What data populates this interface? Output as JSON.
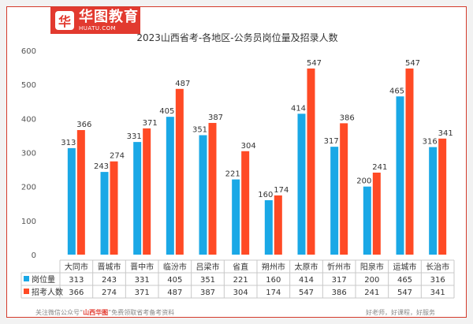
{
  "brand": {
    "mark": "华",
    "name": "华图教育",
    "url": "HUATU.COM"
  },
  "chart_data": {
    "type": "bar",
    "title": "2023山西省考-各地区-公务员岗位量及招录人数",
    "categories": [
      "大同市",
      "晋城市",
      "晋中市",
      "临汾市",
      "吕梁市",
      "省直",
      "朔州市",
      "太原市",
      "忻州市",
      "阳泉市",
      "运城市",
      "长治市"
    ],
    "series": [
      {
        "name": "岗位量",
        "color": "#1aa8e6",
        "values": [
          313,
          243,
          331,
          405,
          351,
          221,
          160,
          414,
          317,
          200,
          465,
          316
        ]
      },
      {
        "name": "招考人数",
        "color": "#ff4a25",
        "values": [
          366,
          274,
          371,
          487,
          387,
          304,
          174,
          547,
          386,
          241,
          547,
          341
        ]
      }
    ],
    "ylim": [
      0,
      600
    ],
    "yticks": [
      0,
      100,
      200,
      300,
      400,
      500,
      600
    ],
    "grid": false,
    "legend": "data-table"
  },
  "footer": {
    "prefix": "关注微信公众号“",
    "highlight": "山西华图",
    "suffix": "”免费领取省考备考资料",
    "slogan": "好老师，好课程，好服务"
  }
}
